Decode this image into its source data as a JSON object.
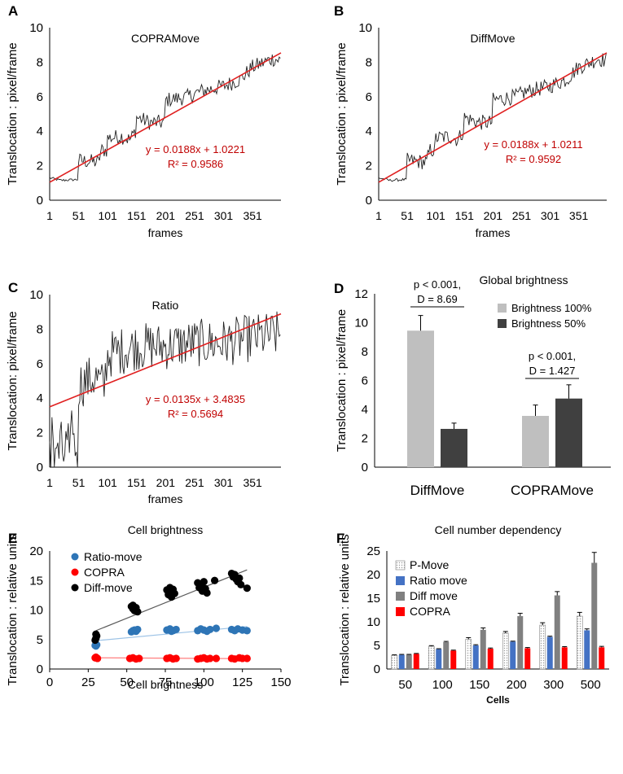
{
  "chart_data": [
    {
      "id": "A",
      "type": "line",
      "panel_label": "A",
      "title": "COPRAMove",
      "xlabel": "frames",
      "ylabel": "Translocation : pixel/frame",
      "xlim": [
        1,
        400
      ],
      "ylim": [
        0,
        10
      ],
      "xticks": [
        1,
        51,
        101,
        151,
        201,
        251,
        301,
        351
      ],
      "yticks": [
        0,
        2,
        4,
        6,
        8,
        10
      ],
      "equation": "y = 0.0188x + 1.0221",
      "r2": "R² = 0.9586",
      "trend": {
        "slope": 0.0188,
        "intercept": 1.0221
      },
      "series_profile": [
        [
          1,
          1.3
        ],
        [
          20,
          1.15
        ],
        [
          50,
          1.2
        ],
        [
          51,
          2.3
        ],
        [
          85,
          2.2
        ],
        [
          90,
          2.9
        ],
        [
          100,
          2.9
        ],
        [
          101,
          3.6
        ],
        [
          125,
          3.7
        ],
        [
          140,
          3.5
        ],
        [
          150,
          4.1
        ],
        [
          151,
          4.8
        ],
        [
          175,
          4.5
        ],
        [
          200,
          4.5
        ],
        [
          201,
          5.8
        ],
        [
          240,
          6.0
        ],
        [
          260,
          6.3
        ],
        [
          300,
          6.6
        ],
        [
          330,
          7.0
        ],
        [
          350,
          7.7
        ],
        [
          365,
          7.9
        ],
        [
          385,
          8.2
        ],
        [
          400,
          8.1
        ]
      ],
      "noise": 0.45
    },
    {
      "id": "B",
      "type": "line",
      "panel_label": "B",
      "title": "DiffMove",
      "xlabel": "frames",
      "ylabel": "Translocation : pixel/frame",
      "xlim": [
        1,
        400
      ],
      "ylim": [
        0,
        10
      ],
      "xticks": [
        1,
        51,
        101,
        151,
        201,
        251,
        301,
        351
      ],
      "yticks": [
        0,
        2,
        4,
        6,
        8,
        10
      ],
      "equation": "y = 0.0188x + 1.0211",
      "r2": "R² = 0.9592",
      "trend": {
        "slope": 0.0188,
        "intercept": 1.0211
      },
      "series_profile": [
        [
          1,
          1.3
        ],
        [
          20,
          1.15
        ],
        [
          50,
          1.2
        ],
        [
          51,
          2.3
        ],
        [
          85,
          2.2
        ],
        [
          90,
          2.9
        ],
        [
          100,
          2.9
        ],
        [
          101,
          3.6
        ],
        [
          125,
          3.7
        ],
        [
          140,
          3.5
        ],
        [
          150,
          4.1
        ],
        [
          151,
          4.8
        ],
        [
          175,
          4.5
        ],
        [
          200,
          4.5
        ],
        [
          201,
          5.8
        ],
        [
          240,
          6.0
        ],
        [
          260,
          6.3
        ],
        [
          300,
          6.6
        ],
        [
          330,
          7.0
        ],
        [
          350,
          7.7
        ],
        [
          365,
          7.9
        ],
        [
          385,
          8.2
        ],
        [
          400,
          8.1
        ]
      ],
      "noise": 0.45
    },
    {
      "id": "C",
      "type": "line",
      "panel_label": "C",
      "title": "Ratio",
      "xlabel": "frames",
      "ylabel": "Translocation: pixel/frame",
      "xlim": [
        1,
        400
      ],
      "ylim": [
        0,
        10
      ],
      "xticks": [
        1,
        51,
        101,
        151,
        201,
        251,
        301,
        351
      ],
      "yticks": [
        0,
        2,
        4,
        6,
        8,
        10
      ],
      "equation": "y = 0.0135x + 3.4835",
      "r2": "R² = 0.5694",
      "trend": {
        "slope": 0.0135,
        "intercept": 3.4835
      },
      "series_profile": [
        [
          1,
          1.2
        ],
        [
          48,
          1.3
        ],
        [
          49,
          0.2
        ],
        [
          51,
          4.8
        ],
        [
          80,
          5.2
        ],
        [
          95,
          4.6
        ],
        [
          100,
          6.5
        ],
        [
          150,
          7.0
        ],
        [
          200,
          7.0
        ],
        [
          250,
          7.2
        ],
        [
          300,
          7.2
        ],
        [
          350,
          7.5
        ],
        [
          400,
          7.7
        ]
      ],
      "noise": 1.4
    },
    {
      "id": "D",
      "type": "bar",
      "panel_label": "D",
      "title": "Global brightness",
      "ylabel": "Translocation : pixel/frame",
      "ylim": [
        0,
        12
      ],
      "yticks": [
        0,
        2,
        4,
        6,
        8,
        10,
        12
      ],
      "categories": [
        "DiffMove",
        "COPRAMove"
      ],
      "series": [
        {
          "name": "Brightness 100%",
          "color": "#bfbfbf",
          "values": [
            9.45,
            3.55
          ],
          "errors": [
            1.05,
            0.75
          ]
        },
        {
          "name": "Brightness 50%",
          "color": "#404040",
          "values": [
            2.65,
            4.75
          ],
          "errors": [
            0.4,
            0.95
          ]
        }
      ],
      "annotations": [
        {
          "line1": "p < 0.001,",
          "line2": "D = 8.69"
        },
        {
          "line1": "p < 0.001,",
          "line2": "D = 1.427"
        }
      ]
    },
    {
      "id": "E",
      "type": "scatter",
      "panel_label": "E",
      "title": "Cell brightness",
      "xlabel": "Cell brightness",
      "ylabel": "Translocation : relative units",
      "xlim": [
        0,
        150
      ],
      "ylim": [
        0,
        20
      ],
      "xticks": [
        0,
        25,
        50,
        75,
        100,
        125,
        150
      ],
      "yticks": [
        0,
        5,
        10,
        15,
        20
      ],
      "series": [
        {
          "name": "Ratio-move",
          "color": "#2e75b6",
          "trend_color": "#9dc3e6",
          "trend": {
            "x0": 30,
            "y0": 4.8,
            "x1": 128,
            "y1": 7.2
          },
          "points": [
            [
              30,
              3.9
            ],
            [
              30.5,
              4.1
            ],
            [
              29.5,
              4.0
            ],
            [
              53,
              6.3
            ],
            [
              55,
              6.6
            ],
            [
              56,
              6.4
            ],
            [
              57,
              6.7
            ],
            [
              54,
              6.5
            ],
            [
              76,
              6.6
            ],
            [
              78,
              6.8
            ],
            [
              80,
              6.5
            ],
            [
              82,
              6.7
            ],
            [
              79,
              6.4
            ],
            [
              96,
              6.5
            ],
            [
              98,
              6.8
            ],
            [
              100,
              6.6
            ],
            [
              102,
              6.4
            ],
            [
              104,
              6.7
            ],
            [
              108,
              6.9
            ],
            [
              118,
              6.7
            ],
            [
              120,
              6.5
            ],
            [
              122,
              6.8
            ],
            [
              125,
              6.6
            ],
            [
              128,
              6.5
            ]
          ]
        },
        {
          "name": "COPRA",
          "color": "#ff0000",
          "trend_color": "#ff7f7f",
          "trend": {
            "x0": 30,
            "y0": 1.9,
            "x1": 128,
            "y1": 1.75
          },
          "points": [
            [
              29.5,
              1.9
            ],
            [
              30,
              2.0
            ],
            [
              31,
              1.8
            ],
            [
              52,
              1.8
            ],
            [
              54,
              1.9
            ],
            [
              56,
              1.7
            ],
            [
              58,
              1.8
            ],
            [
              76,
              1.8
            ],
            [
              78,
              1.9
            ],
            [
              80,
              1.7
            ],
            [
              82,
              1.8
            ],
            [
              96,
              1.7
            ],
            [
              98,
              1.8
            ],
            [
              100,
              1.9
            ],
            [
              102,
              1.7
            ],
            [
              104,
              1.8
            ],
            [
              108,
              1.8
            ],
            [
              118,
              1.8
            ],
            [
              120,
              1.7
            ],
            [
              123,
              1.9
            ],
            [
              125,
              1.8
            ],
            [
              128,
              1.8
            ]
          ]
        },
        {
          "name": "Diff-move",
          "color": "#000000",
          "trend_color": "#595959",
          "trend": {
            "x0": 30,
            "y0": 6.5,
            "x1": 128,
            "y1": 16.8
          },
          "points": [
            [
              29.5,
              4.9
            ],
            [
              30,
              5.2
            ],
            [
              30.5,
              5.6
            ],
            [
              30,
              5.9
            ],
            [
              53,
              10.6
            ],
            [
              54,
              10.2
            ],
            [
              55,
              9.9
            ],
            [
              56,
              10.4
            ],
            [
              57,
              9.7
            ],
            [
              54,
              10.8
            ],
            [
              76,
              13.4
            ],
            [
              77,
              12.6
            ],
            [
              78,
              13.1
            ],
            [
              79,
              12.2
            ],
            [
              80,
              13.5
            ],
            [
              81,
              12.8
            ],
            [
              78,
              13.8
            ],
            [
              96,
              14.6
            ],
            [
              97,
              13.8
            ],
            [
              98,
              14.3
            ],
            [
              99,
              13.2
            ],
            [
              100,
              14.8
            ],
            [
              101,
              13.6
            ],
            [
              102,
              12.9
            ],
            [
              107,
              15.0
            ],
            [
              118,
              16.2
            ],
            [
              119,
              15.6
            ],
            [
              120,
              16.0
            ],
            [
              121,
              15.2
            ],
            [
              122,
              14.8
            ],
            [
              123,
              15.4
            ],
            [
              124,
              14.3
            ],
            [
              128,
              13.7
            ]
          ]
        }
      ]
    },
    {
      "id": "F",
      "type": "bar",
      "panel_label": "F",
      "title": "Cell number dependency",
      "xlabel": "Cells",
      "ylabel": "Translocation : relative units",
      "ylim": [
        0,
        25
      ],
      "yticks": [
        0,
        5,
        10,
        15,
        20,
        25
      ],
      "categories": [
        "50",
        "100",
        "150",
        "200",
        "300",
        "500"
      ],
      "series": [
        {
          "name": "P-Move",
          "color": "#e7e6e6",
          "pattern": true,
          "values": [
            2.9,
            4.8,
            6.3,
            7.6,
            9.3,
            11.2
          ],
          "errors": [
            0.1,
            0.15,
            0.35,
            0.35,
            0.5,
            0.8
          ]
        },
        {
          "name": "Ratio move",
          "color": "#4472c4",
          "values": [
            3.0,
            4.2,
            5.0,
            5.8,
            6.8,
            8.2
          ],
          "errors": [
            0.1,
            0.1,
            0.15,
            0.1,
            0.15,
            0.3
          ]
        },
        {
          "name": "Diff move",
          "color": "#808080",
          "values": [
            3.0,
            5.7,
            8.3,
            11.2,
            15.6,
            22.5
          ],
          "errors": [
            0.1,
            0.15,
            0.4,
            0.6,
            0.8,
            2.2
          ]
        },
        {
          "name": "COPRA",
          "color": "#ff0000",
          "values": [
            3.2,
            3.9,
            4.3,
            4.4,
            4.6,
            4.6
          ],
          "errors": [
            0.1,
            0.1,
            0.15,
            0.15,
            0.15,
            0.2
          ]
        }
      ]
    }
  ]
}
